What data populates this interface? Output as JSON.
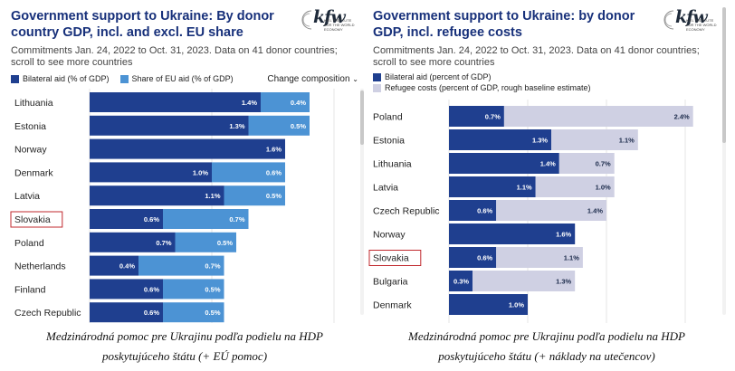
{
  "colors": {
    "title": "#17307a",
    "bilateral": "#1f3f8f",
    "eu_share": "#4c93d4",
    "refugee": "#cfd0e3",
    "highlight": "#c0282d"
  },
  "left": {
    "title": "Government support to Ukraine: By donor country GDP, incl. and excl. EU share",
    "subtitle": "Commitments Jan. 24, 2022 to Oct. 31, 2023. Data on 41 donor countries; scroll to see more countries",
    "legend": [
      "Bilateral aid (% of GDP)",
      "Share of EU aid (% of GDP)"
    ],
    "change_label": "Change composition",
    "logo_text": "kfw",
    "logo_sub": "KIEL INSTITUTE FOR THE WORLD ECONOMY",
    "caption_line1": "Medzinárodná pomoc pre Ukrajinu podľa podielu na HDP",
    "caption_line2": "poskytujúceho štátu (+ EÚ pomoc)"
  },
  "right": {
    "title": "Government support to Ukraine: by donor GDP, incl. refugee costs",
    "subtitle": "Commitments Jan. 24, 2022 to Oct. 31, 2023. Data on 41 donor countries; scroll to see more countries",
    "legend": [
      "Bilateral aid (percent of GDP)",
      "Refugee costs (percent of GDP, rough baseline estimate)"
    ],
    "logo_text": "kfw",
    "logo_sub": "KIEL INSTITUTE FOR THE WORLD ECONOMY",
    "caption_line1": "Medzinárodná pomoc pre Ukrajinu podľa podielu na HDP",
    "caption_line2": "poskytujúceho štátu (+ náklady na utečencov)"
  },
  "chart_data": [
    {
      "type": "bar",
      "orientation": "horizontal",
      "stacked": true,
      "title": "Government support to Ukraine: By donor country GDP, incl. and excl. EU share",
      "categories": [
        "Lithuania",
        "Estonia",
        "Norway",
        "Denmark",
        "Latvia",
        "Slovakia",
        "Poland",
        "Netherlands",
        "Finland",
        "Czech Republic"
      ],
      "highlighted_category": "Slovakia",
      "series": [
        {
          "name": "Bilateral aid (% of GDP)",
          "values": [
            1.4,
            1.3,
            1.6,
            1.0,
            1.1,
            0.6,
            0.7,
            0.4,
            0.6,
            0.6
          ],
          "labels": [
            "1.4%",
            "1.3%",
            "1.6%",
            "1.0%",
            "1.1%",
            "0.6%",
            "0.7%",
            "0.4%",
            "0.6%",
            "0.6%"
          ]
        },
        {
          "name": "Share of EU aid (% of GDP)",
          "values": [
            0.4,
            0.5,
            null,
            0.6,
            0.5,
            0.7,
            0.5,
            0.7,
            0.5,
            0.5
          ],
          "labels": [
            "0.4%",
            "0.5%",
            "",
            "0.6%",
            "0.5%",
            "0.7%",
            "0.5%",
            "0.7%",
            "0.5%",
            "0.5%"
          ]
        }
      ],
      "grid": true
    },
    {
      "type": "bar",
      "orientation": "horizontal",
      "stacked": true,
      "title": "Government support to Ukraine: by donor GDP, incl. refugee costs",
      "categories": [
        "Poland",
        "Estonia",
        "Lithuania",
        "Latvia",
        "Czech Republic",
        "Norway",
        "Slovakia",
        "Bulgaria",
        "Denmark"
      ],
      "highlighted_category": "Slovakia",
      "series": [
        {
          "name": "Bilateral aid (percent of GDP)",
          "values": [
            0.7,
            1.3,
            1.4,
            1.1,
            0.6,
            1.6,
            0.6,
            0.3,
            1.0
          ],
          "labels": [
            "0.7%",
            "1.3%",
            "1.4%",
            "1.1%",
            "0.6%",
            "1.6%",
            "0.6%",
            "0.3%",
            "1.0%"
          ]
        },
        {
          "name": "Refugee costs (percent of GDP, rough baseline estimate)",
          "values": [
            2.4,
            1.1,
            0.7,
            1.0,
            1.4,
            null,
            1.1,
            1.3,
            null
          ],
          "labels": [
            "2.4%",
            "1.1%",
            "0.7%",
            "1.0%",
            "1.4%",
            "",
            "1.1%",
            "1.3%",
            ""
          ]
        }
      ],
      "grid": true
    }
  ]
}
